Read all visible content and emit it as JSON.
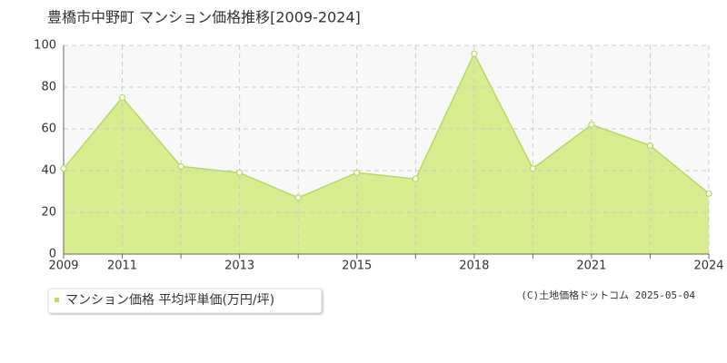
{
  "chart_data": {
    "type": "area",
    "title": "豊橋市中野町 マンション価格推移[2009-2024]",
    "categories": [
      "2009",
      "2011",
      null,
      "2013",
      null,
      "2015",
      null,
      "2018",
      null,
      "2021",
      null,
      "2024"
    ],
    "series": [
      {
        "name": "マンション価格 平均坪単価(万円/坪)",
        "color": "#b5dd55",
        "fill": "#d8ec90",
        "values": [
          41,
          75,
          42,
          39,
          27,
          39,
          36,
          96,
          41,
          62,
          52,
          29
        ]
      }
    ],
    "ylim": [
      0,
      100
    ],
    "yticks": [
      0,
      20,
      40,
      60,
      80,
      100
    ],
    "grid": true,
    "source": "(C)土地価格ドットコム 2025-05-04"
  }
}
